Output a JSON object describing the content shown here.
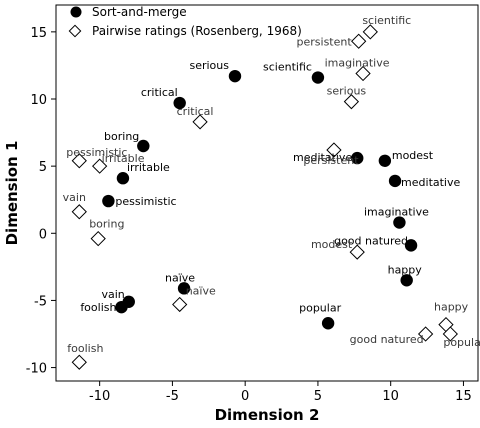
{
  "chart_data": {
    "type": "scatter",
    "xlabel": "Dimension 2",
    "ylabel": "Dimension 1",
    "xlim": [
      -13,
      16
    ],
    "ylim": [
      -11,
      17
    ],
    "xticks": [
      "-10",
      "-5",
      "0",
      "5",
      "10",
      "15"
    ],
    "yticks": [
      "-10",
      "-5",
      "0",
      "5",
      "10",
      "15"
    ],
    "legend_position": "top-left",
    "series": [
      {
        "name": "Sort-and-merge",
        "marker": "filled-circle",
        "color": "#000000",
        "points": [
          {
            "label": "serious",
            "x": -0.7,
            "y": 11.7
          },
          {
            "label": "scientific",
            "x": 5.0,
            "y": 11.6
          },
          {
            "label": "critical",
            "x": -4.5,
            "y": 9.7
          },
          {
            "label": "boring",
            "x": -7.0,
            "y": 6.5
          },
          {
            "label": "irritable",
            "x": -8.4,
            "y": 4.1
          },
          {
            "label": "pessimistic",
            "x": -9.4,
            "y": 2.4
          },
          {
            "label": "meditative",
            "x": 7.7,
            "y": 5.6
          },
          {
            "label": "modest",
            "x": 9.6,
            "y": 5.4
          },
          {
            "label": "meditative",
            "x": 10.3,
            "y": 3.9
          },
          {
            "label": "imaginative",
            "x": 10.6,
            "y": 0.8
          },
          {
            "label": "good natured",
            "x": 11.4,
            "y": -0.9
          },
          {
            "label": "happy",
            "x": 11.1,
            "y": -3.5
          },
          {
            "label": "naïve",
            "x": -4.2,
            "y": -4.1
          },
          {
            "label": "vain",
            "x": -8.0,
            "y": -5.1
          },
          {
            "label": "foolish",
            "x": -8.5,
            "y": -5.5
          },
          {
            "label": "popular",
            "x": 5.7,
            "y": -6.7
          }
        ]
      },
      {
        "name": "Pairwise ratings (Rosenberg, 1968)",
        "marker": "open-diamond",
        "color": "#000000",
        "points": [
          {
            "label": "scientific",
            "x": 8.6,
            "y": 15.0
          },
          {
            "label": "persistent",
            "x": 7.8,
            "y": 14.3
          },
          {
            "label": "imaginative",
            "x": 8.1,
            "y": 11.9
          },
          {
            "label": "serious",
            "x": 7.3,
            "y": 9.8
          },
          {
            "label": "critical",
            "x": -3.1,
            "y": 8.3
          },
          {
            "label": "pessimistic",
            "x": -11.4,
            "y": 5.4
          },
          {
            "label": "irritable",
            "x": -10.0,
            "y": 5.0
          },
          {
            "label": "persistent",
            "x": 6.1,
            "y": 6.2
          },
          {
            "label": "vain",
            "x": -11.4,
            "y": 1.6
          },
          {
            "label": "boring",
            "x": -10.1,
            "y": -0.4
          },
          {
            "label": "modest",
            "x": 7.7,
            "y": -1.4
          },
          {
            "label": "naïve",
            "x": -4.5,
            "y": -5.3
          },
          {
            "label": "good natured",
            "x": 12.4,
            "y": -7.5
          },
          {
            "label": "happy",
            "x": 13.8,
            "y": -6.8
          },
          {
            "label": "popular",
            "x": 14.1,
            "y": -7.5
          },
          {
            "label": "foolish",
            "x": -11.4,
            "y": -9.6
          }
        ]
      }
    ]
  }
}
